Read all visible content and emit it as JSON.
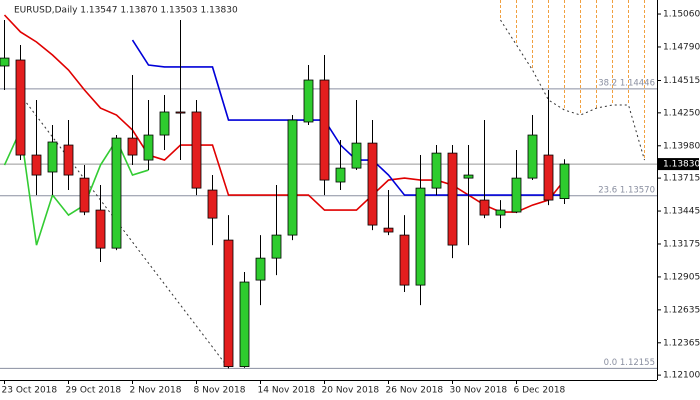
{
  "chart_data": {
    "type": "candlestick",
    "title": "EURUSD,Daily  1.13547 1.13870 1.13503 1.13830",
    "categories": [
      "23 Oct 2018",
      null,
      null,
      null,
      "29 Oct 2018",
      null,
      null,
      null,
      "2 Nov 2018",
      null,
      null,
      null,
      "8 Nov 2018",
      null,
      null,
      null,
      "14 Nov 2018",
      null,
      null,
      null,
      "20 Nov 2018",
      null,
      null,
      null,
      "26 Nov 2018",
      null,
      null,
      null,
      "30 Nov 2018",
      null,
      null,
      null,
      "6 Dec 2018",
      null,
      null,
      null,
      null,
      null,
      null,
      null,
      null
    ],
    "open": [
      1.14634,
      1.14683,
      1.13904,
      1.13765,
      1.13986,
      1.13715,
      1.13453,
      1.13141,
      1.14043,
      1.13863,
      1.14068,
      1.14257,
      1.14257,
      1.13617,
      1.13207,
      1.1217,
      1.12879,
      1.13059,
      1.13248,
      1.14175,
      1.14519,
      1.13683,
      1.13797,
      1.14002,
      1.13305,
      1.13248,
      1.12838,
      1.13633,
      1.1392,
      1.13715,
      1.13535,
      1.13412,
      1.13437,
      1.13715,
      1.13904,
      1.13547,
      null,
      null,
      null,
      null,
      null
    ],
    "high": [
      1.15011,
      1.14806,
      1.14355,
      1.1415,
      1.14191,
      1.13822,
      1.13658,
      1.14068,
      1.1456,
      1.14355,
      1.14396,
      1.15011,
      1.14355,
      1.1374,
      1.13412,
      1.12945,
      1.13248,
      1.13658,
      1.14232,
      1.14642,
      1.14724,
      1.14027,
      1.14355,
      1.14191,
      1.13617,
      1.13412,
      1.13904,
      1.13986,
      1.13986,
      1.13986,
      1.14191,
      1.13535,
      1.13945,
      1.14232,
      1.14437,
      1.1387,
      null,
      null,
      null,
      null,
      null
    ],
    "low": [
      1.14437,
      1.13863,
      1.13576,
      1.13576,
      1.13617,
      1.13412,
      1.13027,
      1.13125,
      1.13822,
      1.13781,
      1.13945,
      1.13863,
      1.13576,
      1.13166,
      1.12155,
      1.1216,
      1.12674,
      1.1292,
      1.13207,
      1.1415,
      1.13576,
      1.13617,
      1.13781,
      1.13289,
      1.13248,
      1.12781,
      1.12674,
      1.13576,
      1.13059,
      1.13166,
      1.13387,
      1.13305,
      1.13428,
      1.13699,
      1.13494,
      1.13503,
      null,
      null,
      null,
      null,
      null
    ],
    "close": [
      1.14699,
      1.13904,
      1.1374,
      1.14011,
      1.1374,
      1.13437,
      1.13141,
      1.14043,
      1.13904,
      1.14068,
      1.14257,
      1.14248,
      1.13633,
      1.13387,
      1.1217,
      1.12863,
      1.13059,
      1.13248,
      1.14191,
      1.14519,
      1.13699,
      1.13797,
      1.14002,
      1.1333,
      1.13273,
      1.12838,
      1.13633,
      1.1392,
      1.13166,
      1.1374,
      1.13412,
      1.13453,
      1.13715,
      1.14068,
      1.13535,
      1.1383,
      null,
      null,
      null,
      null,
      null
    ],
    "up_color": "#2ecc2e",
    "down_color": "#e31e1e",
    "lines": [
      {
        "color": "#e00000",
        "values": [
          1.15052,
          1.14913,
          1.14831,
          1.14724,
          1.14601,
          1.14437,
          1.14289,
          1.14232,
          1.14109,
          1.13904,
          1.13863,
          1.13986,
          1.13986,
          1.13986,
          1.13576,
          1.13576,
          1.13576,
          1.13576,
          1.13576,
          1.13576,
          1.13453,
          1.13453,
          1.13453,
          1.13576,
          1.13699,
          1.13715,
          1.13699,
          1.13699,
          1.13658,
          1.13576,
          1.13494,
          1.13437,
          1.13437,
          1.13494,
          1.13535,
          1.13699,
          null,
          null,
          null,
          null,
          null
        ]
      },
      {
        "color": "#0000d8",
        "values": [
          null,
          null,
          null,
          null,
          null,
          null,
          null,
          null,
          1.14847,
          1.14642,
          1.14626,
          1.14626,
          1.14626,
          1.14626,
          1.14191,
          1.14191,
          1.14191,
          1.14191,
          1.14191,
          1.14191,
          1.14191,
          1.13986,
          1.13863,
          1.13863,
          1.1374,
          1.13576,
          1.13576,
          1.13576,
          1.13576,
          1.13576,
          1.13576,
          1.13576,
          1.13576,
          1.13576,
          1.13576,
          1.13576,
          null,
          null,
          null,
          null,
          null
        ]
      },
      {
        "color": "#33cc33",
        "values": [
          1.13822,
          1.14109,
          1.13166,
          1.13576,
          1.13412,
          1.13494,
          1.13822,
          1.14027,
          1.1374,
          1.13781,
          null,
          null,
          null,
          null,
          null,
          null,
          null,
          null,
          null,
          null,
          null,
          null,
          null,
          null,
          null,
          null,
          null,
          null,
          null,
          null,
          null,
          null,
          null,
          null,
          null,
          null,
          null,
          null,
          null,
          null,
          null
        ]
      }
    ],
    "cloud_span": {
      "color": "#333333",
      "hatch_color": "#f0a040",
      "values": [
        null,
        1.14396,
        1.14224,
        1.14052,
        1.13879,
        1.13707,
        1.13535,
        1.13363,
        1.13191,
        1.13018,
        1.12846,
        1.12674,
        1.12502,
        1.1233,
        1.12157,
        null,
        null,
        null,
        null,
        null,
        null,
        null,
        null,
        null,
        null,
        null,
        null,
        null,
        null,
        null,
        null,
        1.15011,
        1.14806,
        1.14601,
        1.14355,
        1.14273,
        1.14232,
        1.14289,
        1.14314,
        1.14314,
        1.13863
      ]
    },
    "fib_levels": [
      {
        "value": 1.14446,
        "label": "38.2 1.14446"
      },
      {
        "value": 1.1357,
        "label": "23.6 1.13570"
      },
      {
        "value": 1.12155,
        "label": "0.0 1.12155"
      }
    ],
    "last_price": {
      "value": 1.1383,
      "label": "1.13830"
    },
    "ylim": [
      1.1206,
      1.15175
    ],
    "yticks": [
      {
        "value": 1.1506,
        "label": "1.15060"
      },
      {
        "value": 1.1479,
        "label": "1.14790"
      },
      {
        "value": 1.14515,
        "label": "1.14515"
      },
      {
        "value": 1.1425,
        "label": "1.14250"
      },
      {
        "value": 1.1398,
        "label": "1.13980"
      },
      {
        "value": 1.13715,
        "label": "1.13715"
      },
      {
        "value": 1.13445,
        "label": "1.13445"
      },
      {
        "value": 1.13175,
        "label": "1.13175"
      },
      {
        "value": 1.12905,
        "label": "1.12905"
      },
      {
        "value": 1.12635,
        "label": "1.12635"
      },
      {
        "value": 1.12365,
        "label": "1.12365"
      },
      {
        "value": 1.121,
        "label": "1.12100"
      }
    ]
  }
}
